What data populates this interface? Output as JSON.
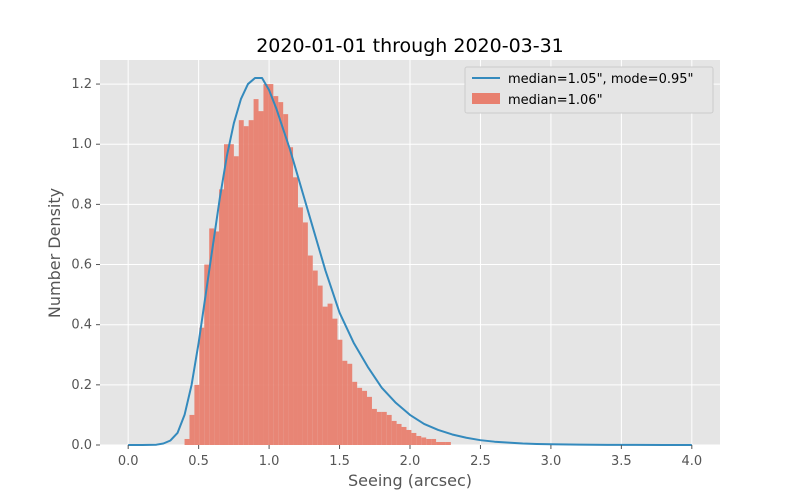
{
  "chart_data": {
    "type": "histogram",
    "title": "2020-01-01 through 2020-03-31",
    "xlabel": "Seeing (arcsec)",
    "ylabel": "Number Density",
    "xlim": [
      -0.2,
      4.2
    ],
    "ylim": [
      0,
      1.28
    ],
    "xticks": [
      0.0,
      0.5,
      1.0,
      1.5,
      2.0,
      2.5,
      3.0,
      3.5,
      4.0
    ],
    "xtick_labels": [
      "0.0",
      "0.5",
      "1.0",
      "1.5",
      "2.0",
      "2.5",
      "3.0",
      "3.5",
      "4.0"
    ],
    "yticks": [
      0.0,
      0.2,
      0.4,
      0.6,
      0.8,
      1.0,
      1.2
    ],
    "ytick_labels": [
      "0.0",
      "0.2",
      "0.4",
      "0.6",
      "0.8",
      "1.0",
      "1.2"
    ],
    "grid": true,
    "legend_position": "top-right",
    "colors": {
      "background": "#e5e5e5",
      "grid": "#ffffff",
      "line": "#348abd",
      "bars": "#e8806f"
    },
    "series": [
      {
        "name": "median=1.05\", mode=0.95\"",
        "kind": "line",
        "x": [
          0.0,
          0.1,
          0.2,
          0.25,
          0.3,
          0.35,
          0.4,
          0.45,
          0.5,
          0.55,
          0.6,
          0.65,
          0.7,
          0.75,
          0.8,
          0.85,
          0.9,
          0.95,
          1.0,
          1.05,
          1.1,
          1.15,
          1.2,
          1.25,
          1.3,
          1.35,
          1.4,
          1.45,
          1.5,
          1.6,
          1.7,
          1.8,
          1.9,
          2.0,
          2.1,
          2.2,
          2.3,
          2.4,
          2.5,
          2.6,
          2.7,
          2.8,
          2.9,
          3.0,
          3.2,
          3.4,
          3.6,
          3.8,
          4.0
        ],
        "y": [
          0.0,
          0.0,
          0.001,
          0.005,
          0.015,
          0.04,
          0.1,
          0.2,
          0.34,
          0.5,
          0.66,
          0.82,
          0.96,
          1.07,
          1.15,
          1.2,
          1.22,
          1.22,
          1.18,
          1.12,
          1.05,
          0.98,
          0.9,
          0.82,
          0.74,
          0.66,
          0.58,
          0.51,
          0.44,
          0.34,
          0.26,
          0.19,
          0.14,
          0.1,
          0.07,
          0.05,
          0.035,
          0.024,
          0.016,
          0.011,
          0.008,
          0.005,
          0.0035,
          0.0025,
          0.0012,
          0.0006,
          0.0003,
          0.0001,
          0.0
        ]
      },
      {
        "name": "median=1.06\"",
        "kind": "histogram",
        "bin_width": 0.035,
        "bin_start": 0.4,
        "values": [
          0.02,
          0.1,
          0.2,
          0.39,
          0.6,
          0.72,
          0.71,
          0.85,
          1.0,
          1.0,
          0.96,
          1.08,
          1.06,
          1.08,
          1.15,
          1.11,
          1.2,
          1.2,
          1.16,
          1.14,
          1.1,
          0.99,
          0.89,
          0.79,
          0.74,
          0.63,
          0.58,
          0.53,
          0.46,
          0.47,
          0.42,
          0.35,
          0.28,
          0.27,
          0.21,
          0.19,
          0.18,
          0.16,
          0.12,
          0.11,
          0.11,
          0.1,
          0.08,
          0.07,
          0.06,
          0.05,
          0.04,
          0.03,
          0.025,
          0.02,
          0.02,
          0.01,
          0.01,
          0.01
        ]
      }
    ]
  }
}
